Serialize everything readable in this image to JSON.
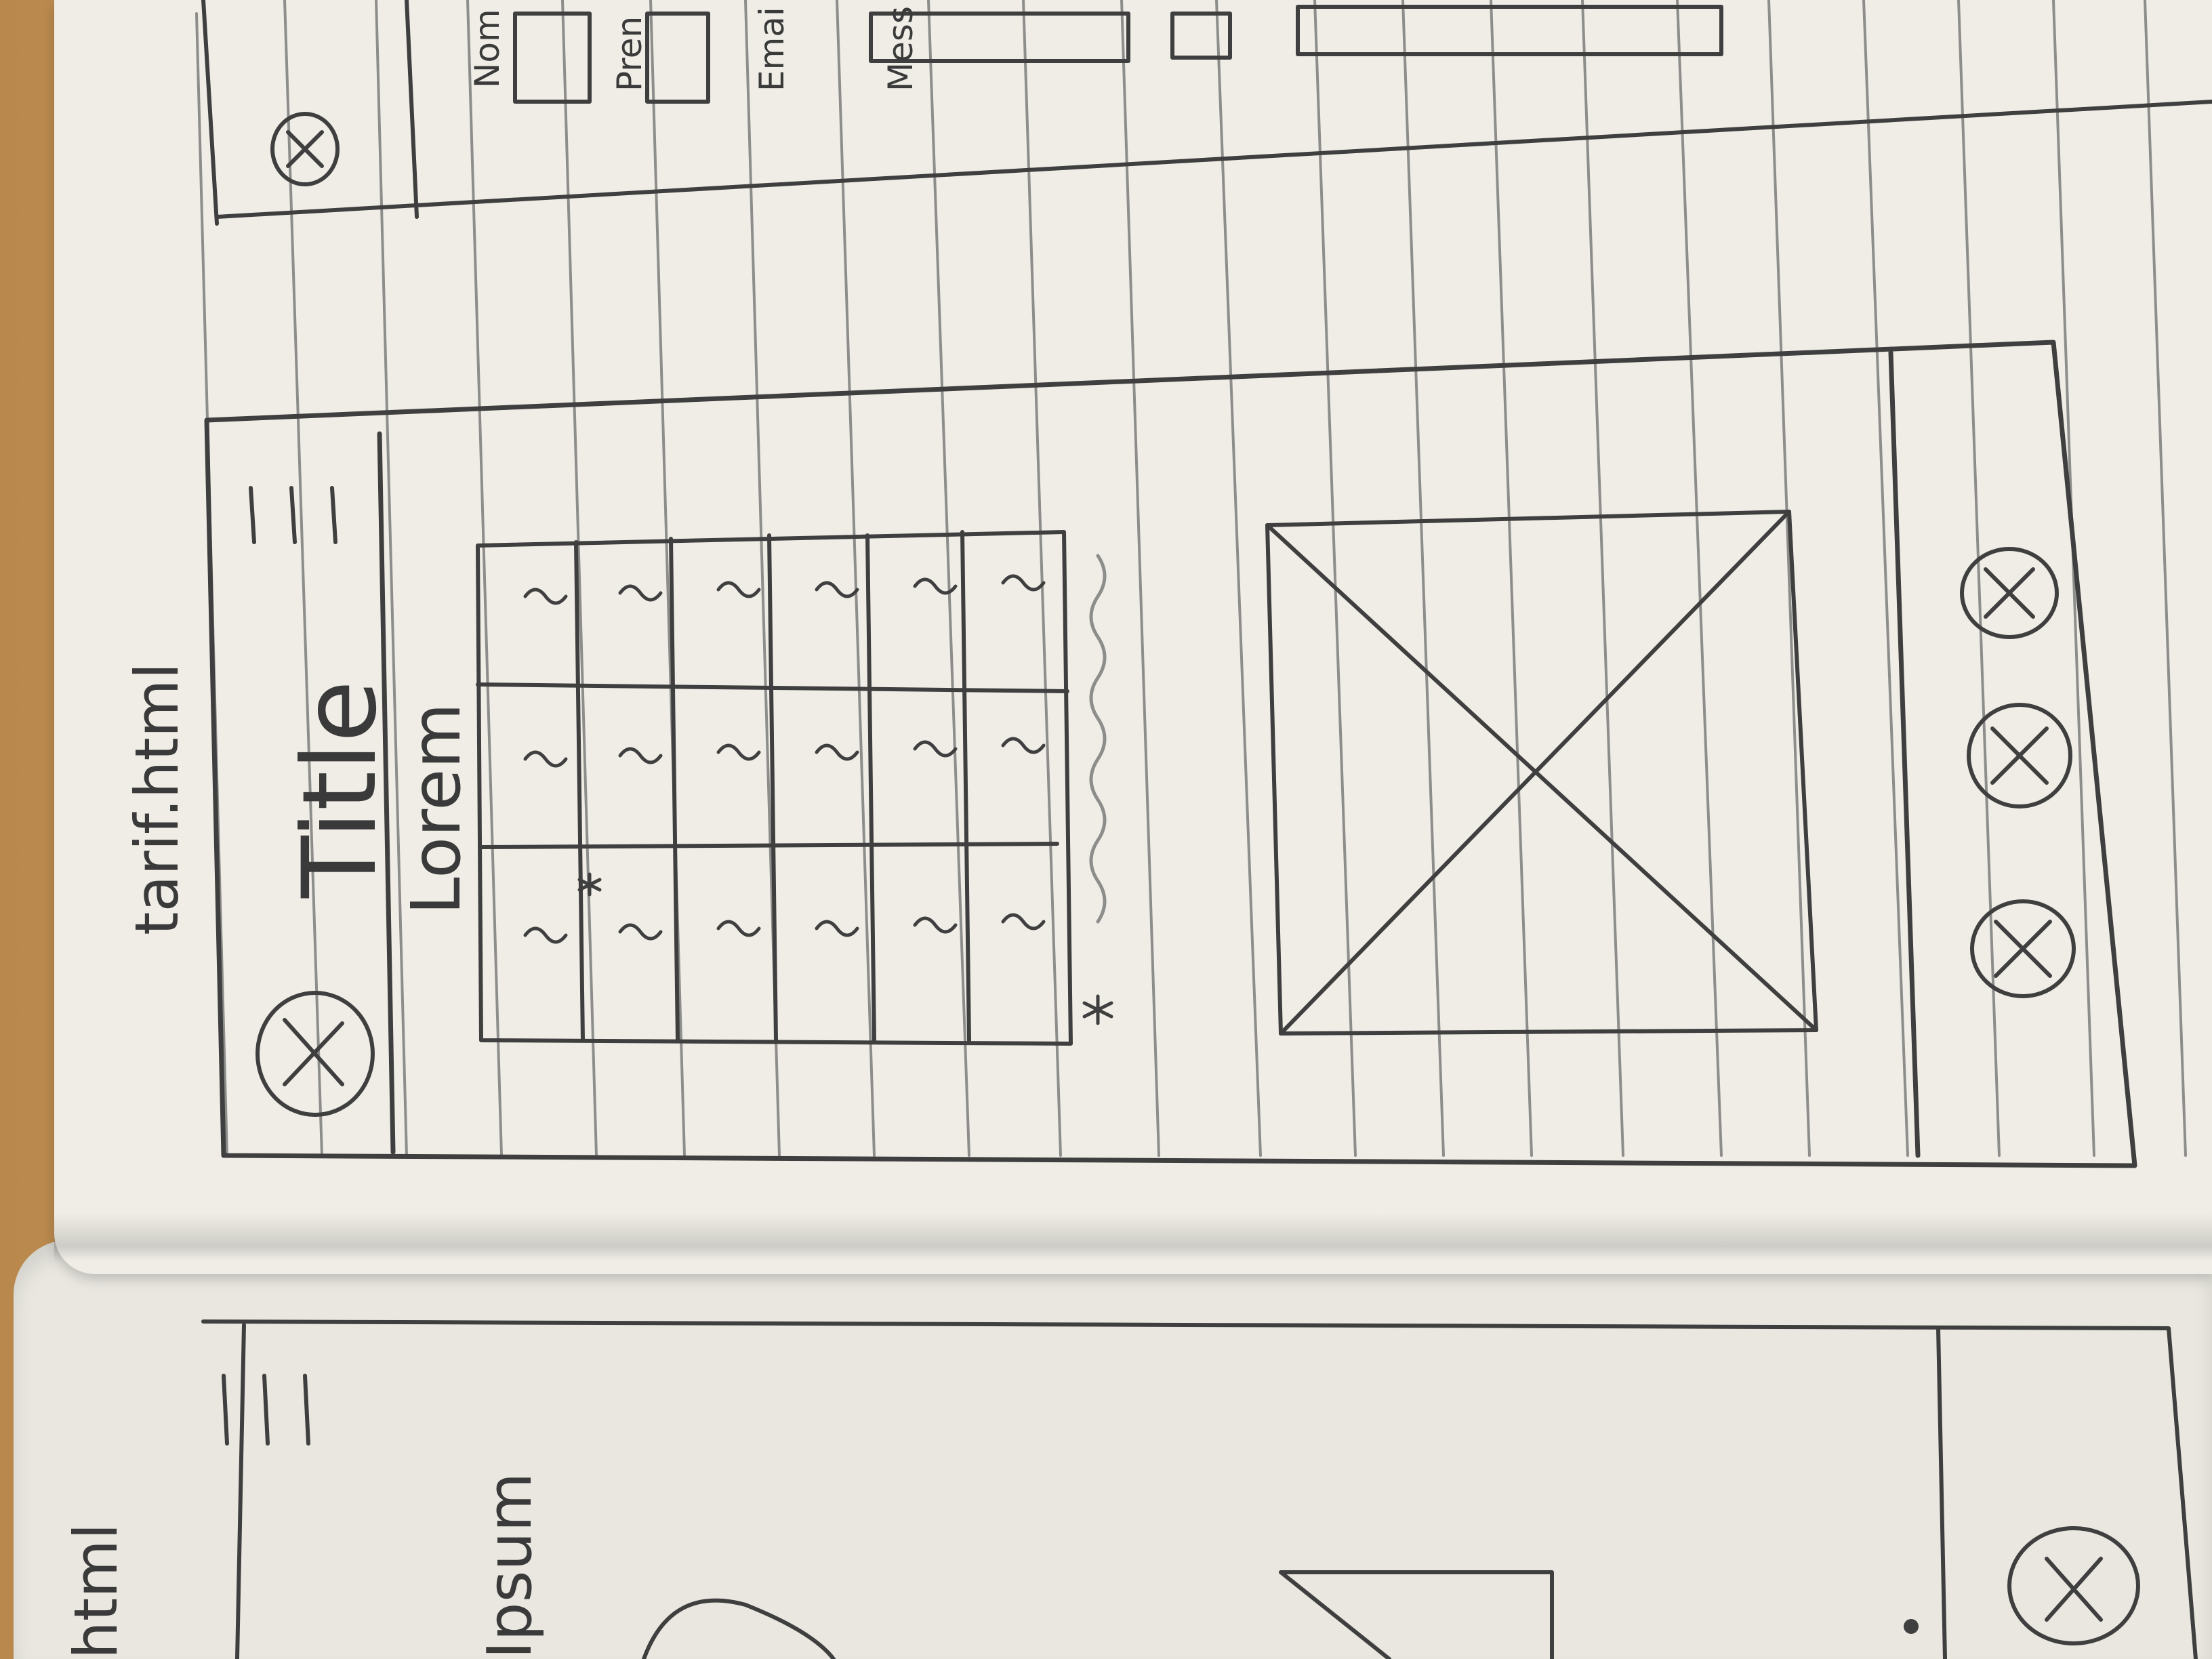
{
  "sketch": {
    "filename": "tarif.html",
    "title": "Title",
    "section_heading": "Lorem",
    "left_page_filename_fragment": "html",
    "left_page_heading_fragment": "Ipsum",
    "form_labels": [
      "Nom",
      "Pren",
      "Emai",
      "Mess"
    ],
    "table_rows": 6,
    "table_columns": 3,
    "footer_icons": [
      "close-circle-icon",
      "close-circle-icon",
      "close-circle-icon"
    ],
    "pencil_color": "#3f3f3f",
    "paper_color": "#efede6"
  }
}
